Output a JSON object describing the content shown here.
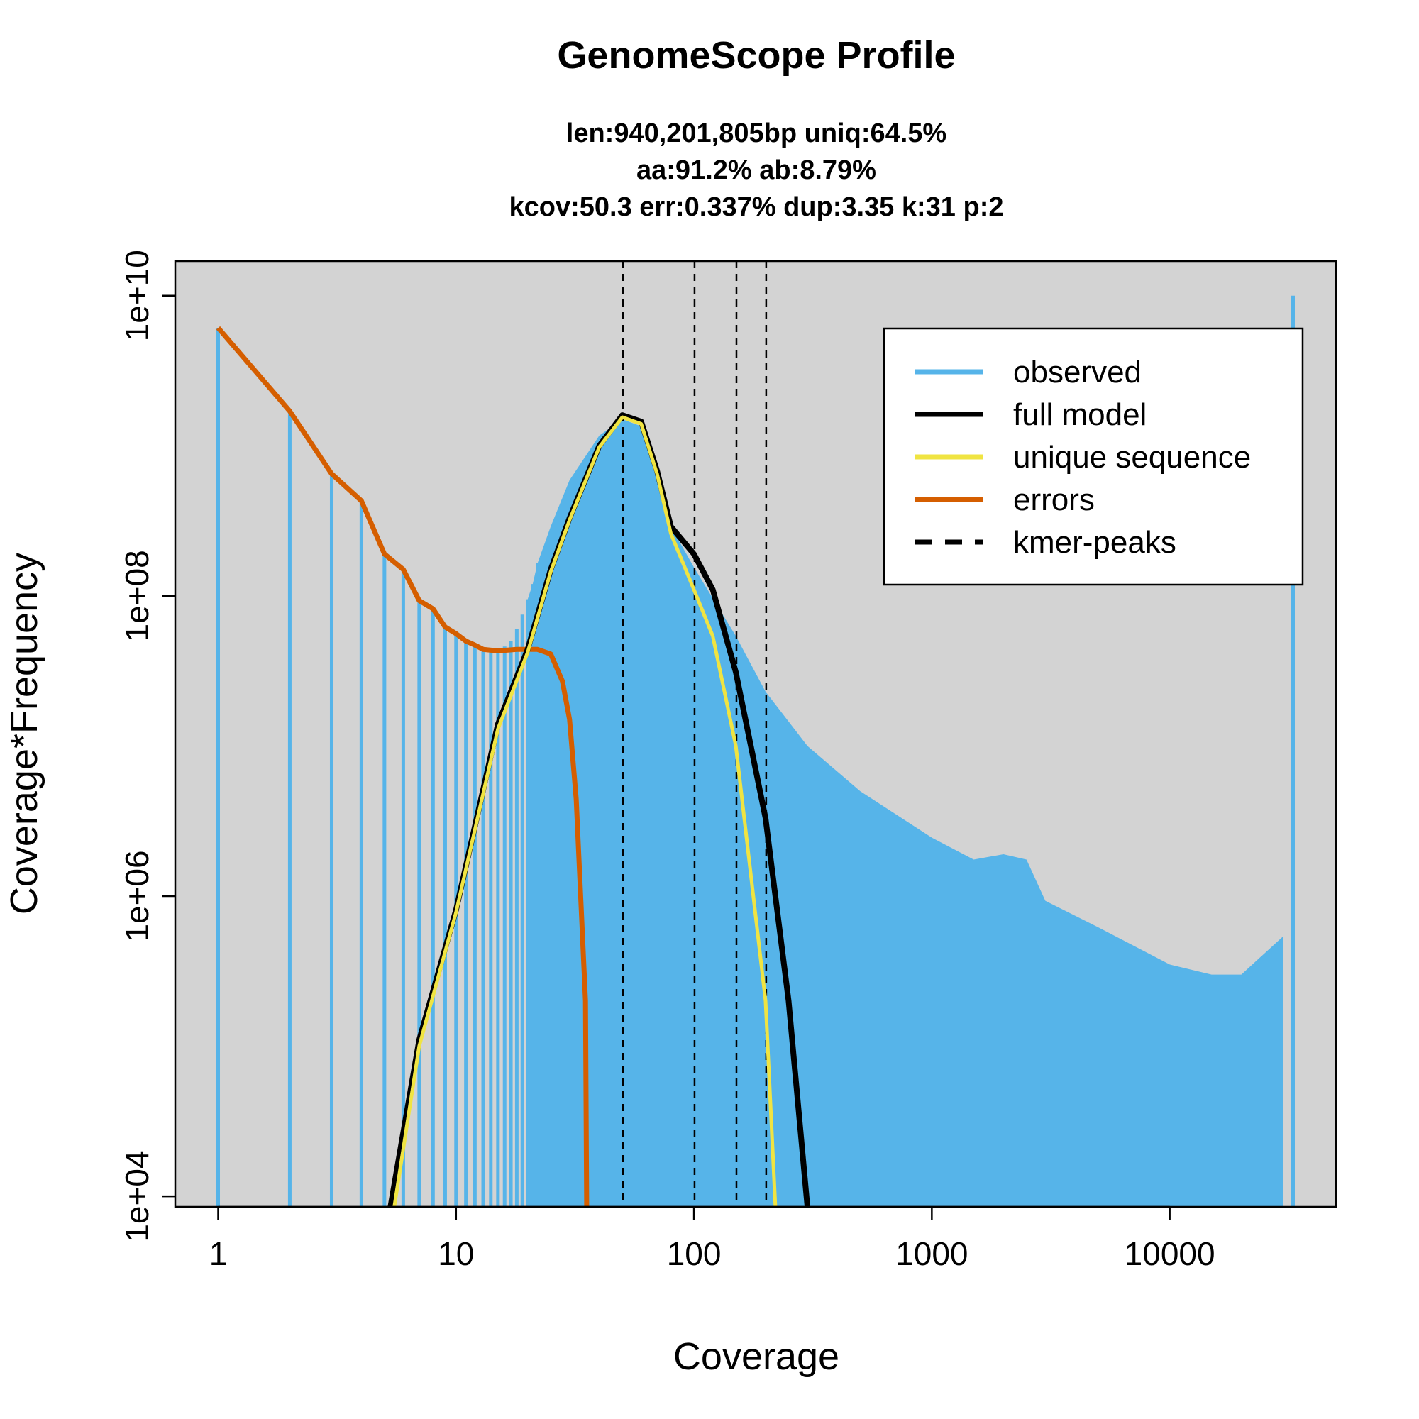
{
  "chart_data": {
    "type": "bar",
    "title": "GenomeScope Profile",
    "subtitle_lines": [
      "len:940,201,805bp uniq:64.5%",
      "aa:91.2% ab:8.79%",
      "kcov:50.3 err:0.337%  dup:3.35  k:31 p:2"
    ],
    "xlabel": "Coverage",
    "ylabel": "Coverage*Frequency",
    "x_scale": "log",
    "y_scale": "log",
    "xlim": [
      0.66,
      50000
    ],
    "ylim": [
      8500,
      17000000000
    ],
    "x_ticks": [
      1,
      10,
      100,
      1000,
      10000
    ],
    "x_tick_labels": [
      "1",
      "10",
      "100",
      "1000",
      "10000"
    ],
    "y_ticks": [
      10000,
      1000000,
      100000000,
      10000000000
    ],
    "y_tick_labels": [
      "1e+04",
      "1e+06",
      "1e+08",
      "1e+10"
    ],
    "background": "#d3d3d3",
    "grid": false,
    "legend_placement": "top-right",
    "legend": [
      {
        "label": "observed",
        "color": "#56b4e9",
        "style": "solid"
      },
      {
        "label": "full model",
        "color": "#000000",
        "style": "solid"
      },
      {
        "label": "unique sequence",
        "color": "#f0e442",
        "style": "solid"
      },
      {
        "label": "errors",
        "color": "#d55e00",
        "style": "solid"
      },
      {
        "label": "kmer-peaks",
        "color": "#000000",
        "style": "dashed"
      }
    ],
    "kmer_peaks": [
      50.3,
      100.6,
      150.9,
      201.2
    ],
    "observed": [
      [
        1,
        6100000000.0
      ],
      [
        2,
        1700000000.0
      ],
      [
        3,
        650000000.0
      ],
      [
        4,
        430000000.0
      ],
      [
        5,
        190000000.0
      ],
      [
        6,
        150000000.0
      ],
      [
        7,
        93000000.0
      ],
      [
        8,
        82000000.0
      ],
      [
        9,
        62000000.0
      ],
      [
        10,
        56000000.0
      ],
      [
        11,
        50000000.0
      ],
      [
        12,
        47000000.0
      ],
      [
        13,
        44000000.0
      ],
      [
        14,
        44000000.0
      ],
      [
        15,
        44000000.0
      ],
      [
        16,
        46000000.0
      ],
      [
        17,
        50000000.0
      ],
      [
        18,
        60000000.0
      ],
      [
        19,
        75000000.0
      ],
      [
        20,
        95000000.0
      ],
      [
        21,
        120000000.0
      ],
      [
        22,
        165000000.0
      ],
      [
        25,
        290000000.0
      ],
      [
        30,
        590000000.0
      ],
      [
        40,
        1170000000.0
      ],
      [
        50,
        1500000000.0
      ],
      [
        60,
        1350000000.0
      ],
      [
        70,
        590000000.0
      ],
      [
        80,
        290000000.0
      ],
      [
        100,
        155000000.0
      ],
      [
        150,
        54000000.0
      ],
      [
        200,
        23000000.0
      ],
      [
        300,
        10000000.0
      ],
      [
        500,
        5000000.0
      ],
      [
        1000,
        2450000.0
      ],
      [
        1500,
        1750000.0
      ],
      [
        2000,
        1900000.0
      ],
      [
        2500,
        1750000.0
      ],
      [
        3000,
        930000.0
      ],
      [
        5000,
        620000.0
      ],
      [
        10000,
        350000.0
      ],
      [
        15000,
        300000.0
      ],
      [
        20000,
        300000.0
      ],
      [
        30000,
        540000.0
      ],
      [
        33000,
        10000000000.0
      ]
    ],
    "full_model": [
      [
        5.3,
        8500
      ],
      [
        7,
        110000.0
      ],
      [
        10,
        810000.0
      ],
      [
        15,
        14000000.0
      ],
      [
        20,
        44000000.0
      ],
      [
        25,
        150000000.0
      ],
      [
        30,
        330000000.0
      ],
      [
        40,
        1000000000.0
      ],
      [
        50,
        1600000000.0
      ],
      [
        60,
        1450000000.0
      ],
      [
        70,
        680000000.0
      ],
      [
        80,
        290000000.0
      ],
      [
        100,
        190000000.0
      ],
      [
        120,
        110000000.0
      ],
      [
        150,
        31000000.0
      ],
      [
        200,
        3300000.0
      ],
      [
        250,
        200000.0
      ],
      [
        300,
        8500
      ]
    ],
    "unique_sequence": [
      [
        5.5,
        8500
      ],
      [
        7,
        100000.0
      ],
      [
        10,
        780000.0
      ],
      [
        15,
        13000000.0
      ],
      [
        20,
        42000000.0
      ],
      [
        25,
        145000000.0
      ],
      [
        30,
        320000000.0
      ],
      [
        40,
        980000000.0
      ],
      [
        50,
        1550000000.0
      ],
      [
        60,
        1400000000.0
      ],
      [
        70,
        650000000.0
      ],
      [
        80,
        260000000.0
      ],
      [
        100,
        110000000.0
      ],
      [
        120,
        54000000.0
      ],
      [
        150,
        10000000.0
      ],
      [
        200,
        200000.0
      ],
      [
        220,
        8500
      ]
    ],
    "errors": [
      [
        1,
        6100000000.0
      ],
      [
        2,
        1700000000.0
      ],
      [
        3,
        650000000.0
      ],
      [
        4,
        430000000.0
      ],
      [
        5,
        190000000.0
      ],
      [
        6,
        150000000.0
      ],
      [
        7,
        93000000.0
      ],
      [
        8,
        82000000.0
      ],
      [
        9,
        62000000.0
      ],
      [
        10,
        56000000.0
      ],
      [
        11,
        50000000.0
      ],
      [
        12,
        47000000.0
      ],
      [
        13,
        44000000.0
      ],
      [
        15,
        43000000.0
      ],
      [
        18,
        44000000.0
      ],
      [
        22,
        44000000.0
      ],
      [
        25,
        41000000.0
      ],
      [
        28,
        27000000.0
      ],
      [
        30,
        15000000.0
      ],
      [
        32,
        4400000.0
      ],
      [
        34,
        540000.0
      ],
      [
        35,
        200000.0
      ],
      [
        35.4,
        8500
      ]
    ]
  }
}
